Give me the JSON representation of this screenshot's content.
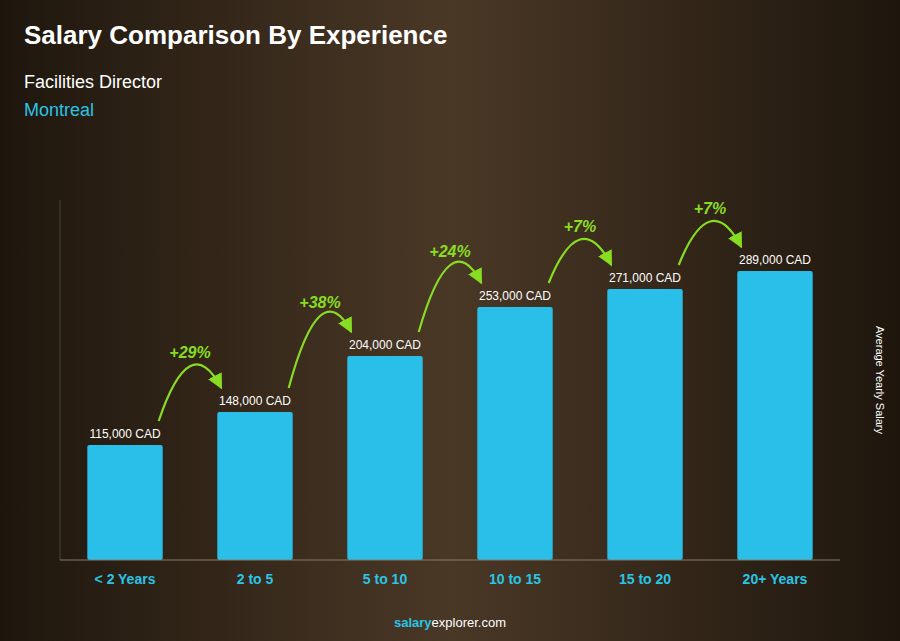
{
  "chart_data": {
    "type": "bar",
    "title": "Salary Comparison By Experience",
    "subtitle": [
      "Facilities Director",
      "Montreal"
    ],
    "y_label": "Average Yearly Salary",
    "source": [
      "salary",
      "explorer.com"
    ],
    "categories": [
      "< 2 Years",
      "2 to 5",
      "5 to 10",
      "10 to 15",
      "15 to 20",
      "20+ Years"
    ],
    "values": [
      115000,
      148000,
      204000,
      253000,
      271000,
      289000
    ],
    "value_labels": [
      "115,000 CAD",
      "148,000 CAD",
      "204,000 CAD",
      "253,000 CAD",
      "271,000 CAD",
      "289,000 CAD"
    ],
    "data_labels": true,
    "annotations": [
      "+29%",
      "+38%",
      "+24%",
      "+7%",
      "+7%"
    ],
    "color": "#29bfe8",
    "ylim": [
      0,
      360000
    ],
    "tick_labels": "x",
    "grid": false
  }
}
